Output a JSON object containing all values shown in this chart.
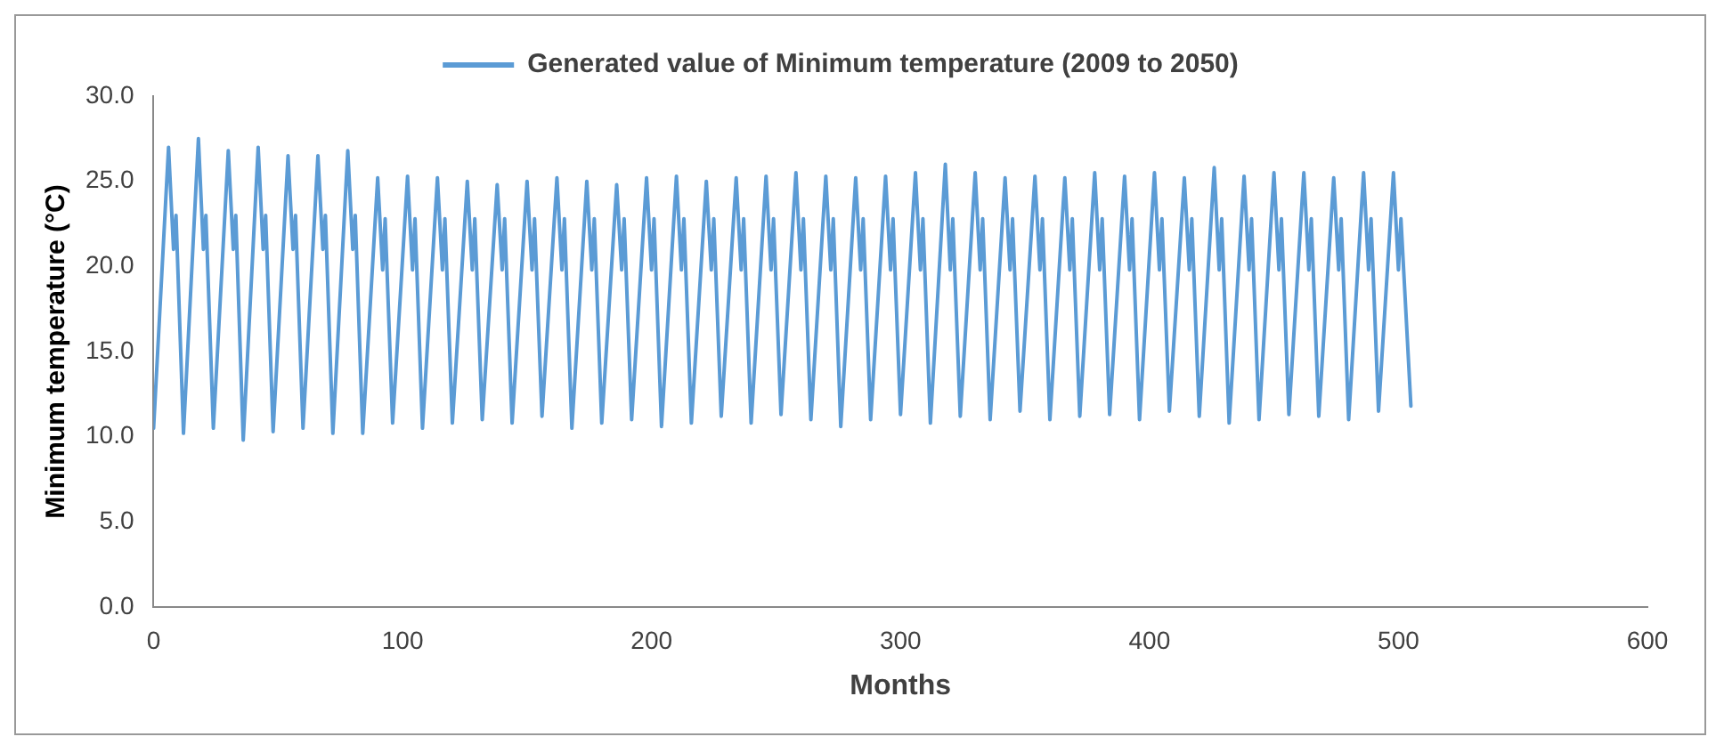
{
  "chart_data": {
    "type": "line",
    "xlabel": "Months",
    "ylabel": "Minimum temperature (°C)",
    "xlim": [
      0,
      600
    ],
    "xticks": [
      0,
      100,
      200,
      300,
      400,
      500,
      600
    ],
    "ylim": [
      0,
      30
    ],
    "yticks": [
      {
        "value": 0,
        "label": "0.0"
      },
      {
        "value": 5,
        "label": "5.0"
      },
      {
        "value": 10,
        "label": "10.0"
      },
      {
        "value": 15,
        "label": "15.0"
      },
      {
        "value": 20,
        "label": "20.0"
      },
      {
        "value": 25,
        "label": "25.0"
      },
      {
        "value": 30,
        "label": "30.0"
      }
    ],
    "grid": false,
    "legend": "top",
    "marker": "none",
    "line_style": "solid",
    "series": [
      {
        "name": "Generated value of Minimum temperature (2009 to 2050)",
        "color": "#5b9bd5",
        "x": [
          0,
          6,
          8,
          9,
          12,
          18,
          20,
          21,
          24,
          30,
          32,
          33,
          36,
          42,
          44,
          45,
          48,
          54,
          56,
          57,
          60,
          66,
          68,
          69,
          72,
          78,
          80,
          81,
          84,
          90,
          92,
          93,
          96,
          102,
          104,
          105,
          108,
          114,
          116,
          117,
          120,
          126,
          128,
          129,
          132,
          138,
          140,
          141,
          144,
          150,
          152,
          153,
          156,
          162,
          164,
          165,
          168,
          174,
          176,
          177,
          180,
          186,
          188,
          189,
          192,
          198,
          200,
          201,
          204,
          210,
          212,
          213,
          216,
          222,
          224,
          225,
          228,
          234,
          236,
          237,
          240,
          246,
          248,
          249,
          252,
          258,
          260,
          261,
          264,
          270,
          272,
          273,
          276,
          282,
          284,
          285,
          288,
          294,
          296,
          297,
          300,
          306,
          308,
          309,
          312,
          318,
          320,
          321,
          324,
          330,
          332,
          333,
          336,
          342,
          344,
          345,
          348,
          354,
          356,
          357,
          360,
          366,
          368,
          369,
          372,
          378,
          380,
          381,
          384,
          390,
          392,
          393,
          396,
          402,
          404,
          405,
          408,
          414,
          416,
          417,
          420,
          426,
          428,
          429,
          432,
          438,
          440,
          441,
          444,
          450,
          452,
          453,
          456,
          462,
          464,
          465,
          468,
          474,
          476,
          477,
          480,
          486,
          488,
          489,
          492,
          498,
          500,
          501,
          505
        ],
        "values": [
          10.5,
          27.0,
          21.0,
          23.0,
          10.2,
          27.5,
          21.0,
          23.0,
          10.5,
          26.8,
          21.0,
          23.0,
          9.8,
          27.0,
          21.0,
          23.0,
          10.3,
          26.5,
          21.0,
          23.0,
          10.5,
          26.5,
          21.0,
          23.0,
          10.2,
          26.8,
          21.0,
          23.0,
          10.2,
          25.2,
          19.8,
          22.8,
          10.8,
          25.3,
          19.8,
          22.8,
          10.5,
          25.2,
          19.8,
          22.8,
          10.8,
          25.0,
          19.8,
          22.8,
          11.0,
          24.8,
          19.8,
          22.8,
          10.8,
          25.0,
          19.8,
          22.8,
          11.2,
          25.2,
          19.8,
          22.8,
          10.5,
          25.0,
          19.8,
          22.8,
          10.8,
          24.8,
          19.8,
          22.8,
          11.0,
          25.2,
          19.8,
          22.8,
          10.6,
          25.3,
          19.8,
          22.8,
          10.8,
          25.0,
          19.8,
          22.8,
          11.2,
          25.2,
          19.8,
          22.8,
          10.8,
          25.3,
          19.8,
          22.8,
          11.3,
          25.5,
          19.8,
          22.8,
          11.0,
          25.3,
          19.8,
          22.8,
          10.6,
          25.2,
          19.8,
          22.8,
          11.0,
          25.3,
          19.8,
          22.8,
          11.3,
          25.5,
          19.8,
          22.8,
          10.8,
          26.0,
          19.8,
          22.8,
          11.2,
          25.5,
          19.8,
          22.8,
          11.0,
          25.2,
          19.8,
          22.8,
          11.5,
          25.3,
          19.8,
          22.8,
          11.0,
          25.2,
          19.8,
          22.8,
          11.2,
          25.5,
          19.8,
          22.8,
          11.3,
          25.3,
          19.8,
          22.8,
          11.0,
          25.5,
          19.8,
          22.8,
          11.5,
          25.2,
          19.8,
          22.8,
          11.2,
          25.8,
          19.8,
          22.8,
          10.8,
          25.3,
          19.8,
          22.8,
          11.0,
          25.5,
          19.8,
          22.8,
          11.3,
          25.5,
          19.8,
          22.8,
          11.2,
          25.2,
          19.8,
          22.8,
          11.0,
          25.5,
          19.8,
          22.8,
          11.5,
          25.5,
          19.8,
          22.8,
          11.8
        ]
      }
    ]
  }
}
